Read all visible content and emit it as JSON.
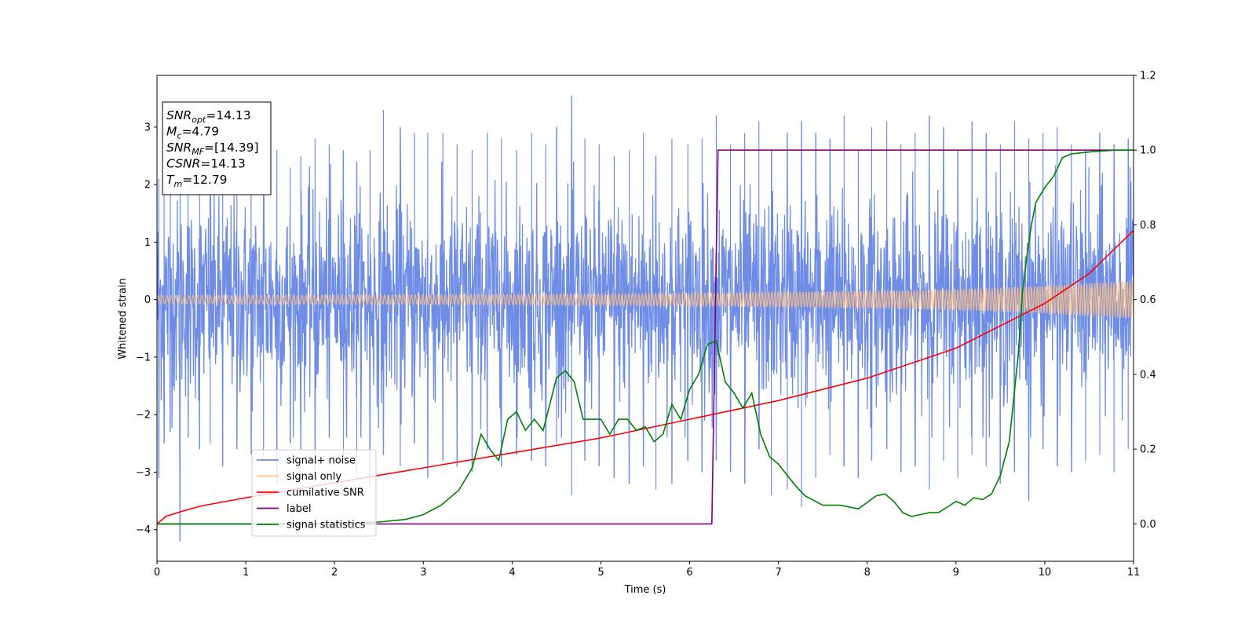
{
  "chart_data": {
    "type": "line",
    "xlabel": "Time (s)",
    "ylabel": "Whitened strain",
    "y2label": "",
    "xlim": [
      0,
      11
    ],
    "ylim": [
      -4.55,
      3.9
    ],
    "y2lim": [
      -0.1,
      1.2
    ],
    "xticks": [
      0,
      1,
      2,
      3,
      4,
      5,
      6,
      7,
      8,
      9,
      10,
      11
    ],
    "yticks": [
      -4,
      -3,
      -2,
      -1,
      0,
      1,
      2,
      3
    ],
    "y2ticks": [
      0.0,
      0.2,
      0.4,
      0.6,
      0.8,
      1.0,
      1.2
    ],
    "grid": false,
    "legend_position": "lower-left",
    "annotation": {
      "lines": [
        {
          "sym": "SNR",
          "sub": "opt",
          "text": "=14.13"
        },
        {
          "sym": "M",
          "sub": "c",
          "text": "=4.79"
        },
        {
          "sym": "SNR",
          "sub": "MF",
          "text": "=[14.39]"
        },
        {
          "sym": "CSNR",
          "sub": "",
          "text": "=14.13"
        },
        {
          "sym": "T",
          "sub": "m",
          "text": "=12.79"
        }
      ]
    },
    "series": [
      {
        "name": "signal+ noise",
        "axis": "left",
        "color": "#6f8de6",
        "kind": "noise_band",
        "band_sigma": 1.0,
        "peaks_x": [
          0.02,
          0.08,
          0.15,
          0.26,
          0.35,
          0.48,
          0.6,
          0.74,
          0.9,
          1.06,
          1.2,
          1.35,
          1.5,
          1.62,
          1.78,
          1.94,
          2.1,
          2.25,
          2.4,
          2.55,
          2.74,
          2.9,
          3.05,
          3.22,
          3.38,
          3.55,
          3.72,
          3.88,
          4.05,
          4.22,
          4.38,
          4.5,
          4.67,
          4.82,
          4.98,
          5.15,
          5.32,
          5.48,
          5.62,
          5.8,
          5.98,
          6.14,
          6.3,
          6.46,
          6.62,
          6.78,
          6.92,
          7.1,
          7.26,
          7.42,
          7.58,
          7.74,
          7.9,
          8.05,
          8.22,
          8.38,
          8.54,
          8.7,
          8.86,
          9.02,
          9.18,
          9.34,
          9.5,
          9.66,
          9.82,
          9.98,
          10.14,
          10.3,
          10.46,
          10.62,
          10.78,
          10.94
        ],
        "peaks_hi": [
          2.1,
          2.6,
          2.2,
          2.0,
          2.4,
          2.3,
          2.5,
          2.1,
          2.6,
          2.4,
          2.7,
          2.6,
          2.3,
          2.5,
          2.8,
          2.7,
          2.6,
          2.4,
          2.6,
          3.3,
          3.0,
          2.9,
          2.9,
          2.9,
          2.7,
          2.6,
          2.9,
          2.8,
          2.6,
          2.9,
          2.7,
          3.0,
          3.55,
          2.8,
          2.7,
          2.5,
          2.6,
          2.9,
          2.5,
          2.8,
          2.7,
          2.8,
          3.2,
          2.7,
          2.9,
          3.1,
          2.6,
          2.9,
          3.1,
          2.9,
          2.8,
          3.2,
          2.6,
          3.0,
          3.1,
          2.7,
          2.9,
          3.2,
          3.0,
          2.6,
          3.1,
          2.9,
          2.7,
          3.1,
          2.8,
          2.9,
          3.0,
          2.7,
          2.6,
          2.9,
          2.7,
          2.8
        ],
        "peaks_lo": [
          -3.1,
          -2.5,
          -2.3,
          -4.2,
          -2.4,
          -2.6,
          -2.5,
          -2.9,
          -2.6,
          -2.7,
          -2.8,
          -3.2,
          -2.5,
          -2.6,
          -3.0,
          -2.4,
          -2.8,
          -3.1,
          -3.2,
          -2.7,
          -2.9,
          -2.5,
          -3.1,
          -2.8,
          -2.9,
          -3.0,
          -2.6,
          -2.9,
          -2.7,
          -2.8,
          -2.9,
          -2.5,
          -3.4,
          -2.8,
          -2.9,
          -3.1,
          -3.2,
          -2.9,
          -3.3,
          -3.2,
          -2.8,
          -3.0,
          -2.8,
          -3.0,
          -3.2,
          -2.6,
          -3.4,
          -3.3,
          -3.6,
          -3.1,
          -2.7,
          -2.9,
          -3.1,
          -2.8,
          -2.6,
          -3.0,
          -2.9,
          -3.3,
          -2.8,
          -3.1,
          -2.7,
          -2.9,
          -3.2,
          -3.0,
          -3.5,
          -2.6,
          -2.9,
          -3.0,
          -2.8,
          -2.7,
          -3.0,
          -2.6
        ]
      },
      {
        "name": "signal only",
        "axis": "left",
        "color": "#ffbf80",
        "kind": "chirp",
        "x": [
          0,
          1,
          2,
          3,
          4,
          5,
          6,
          7,
          8,
          9,
          10,
          11
        ],
        "amplitude": [
          0.07,
          0.075,
          0.08,
          0.085,
          0.09,
          0.1,
          0.11,
          0.13,
          0.15,
          0.18,
          0.24,
          0.33
        ]
      },
      {
        "name": "cumilative SNR",
        "axis": "right",
        "color": "#ff0000",
        "kind": "line",
        "x": [
          0,
          0.1,
          0.3,
          0.5,
          1,
          1.5,
          2,
          3,
          4,
          5,
          6,
          7,
          8,
          9,
          10,
          10.5,
          11
        ],
        "y": [
          0.0,
          0.02,
          0.035,
          0.048,
          0.07,
          0.09,
          0.11,
          0.15,
          0.19,
          0.23,
          0.28,
          0.33,
          0.39,
          0.47,
          0.59,
          0.67,
          0.785
        ]
      },
      {
        "name": "label",
        "axis": "right",
        "color": "#800080",
        "kind": "line",
        "x": [
          0,
          6.25,
          6.32,
          11
        ],
        "y": [
          0.0,
          0.0,
          1.0,
          1.0
        ]
      },
      {
        "name": "signal statistics",
        "axis": "right",
        "color": "#008000",
        "kind": "line",
        "x": [
          0,
          0.5,
          1.0,
          2.0,
          2.5,
          2.8,
          3.0,
          3.2,
          3.4,
          3.55,
          3.65,
          3.75,
          3.85,
          3.95,
          4.05,
          4.15,
          4.25,
          4.35,
          4.5,
          4.6,
          4.7,
          4.8,
          4.9,
          5.0,
          5.1,
          5.2,
          5.3,
          5.4,
          5.5,
          5.6,
          5.7,
          5.8,
          5.9,
          6.0,
          6.1,
          6.2,
          6.3,
          6.4,
          6.5,
          6.6,
          6.7,
          6.8,
          6.9,
          7.0,
          7.1,
          7.2,
          7.3,
          7.5,
          7.7,
          7.9,
          8.1,
          8.2,
          8.3,
          8.4,
          8.5,
          8.6,
          8.7,
          8.8,
          8.9,
          9.0,
          9.1,
          9.2,
          9.3,
          9.4,
          9.5,
          9.6,
          9.7,
          9.75,
          9.8,
          9.85,
          9.9,
          10.0,
          10.1,
          10.2,
          10.3,
          10.5,
          10.8,
          11.0
        ],
        "y": [
          0.0,
          0.0,
          0.0,
          0.0,
          0.005,
          0.012,
          0.025,
          0.05,
          0.09,
          0.15,
          0.24,
          0.2,
          0.17,
          0.28,
          0.3,
          0.25,
          0.28,
          0.25,
          0.39,
          0.41,
          0.38,
          0.28,
          0.28,
          0.28,
          0.24,
          0.28,
          0.28,
          0.25,
          0.26,
          0.22,
          0.24,
          0.32,
          0.28,
          0.36,
          0.4,
          0.48,
          0.49,
          0.38,
          0.35,
          0.31,
          0.35,
          0.24,
          0.18,
          0.16,
          0.13,
          0.1,
          0.075,
          0.05,
          0.05,
          0.04,
          0.075,
          0.08,
          0.06,
          0.03,
          0.02,
          0.025,
          0.03,
          0.03,
          0.045,
          0.06,
          0.05,
          0.07,
          0.065,
          0.08,
          0.13,
          0.22,
          0.45,
          0.62,
          0.72,
          0.8,
          0.86,
          0.9,
          0.93,
          0.98,
          0.99,
          0.995,
          1.0,
          1.0
        ]
      }
    ]
  }
}
